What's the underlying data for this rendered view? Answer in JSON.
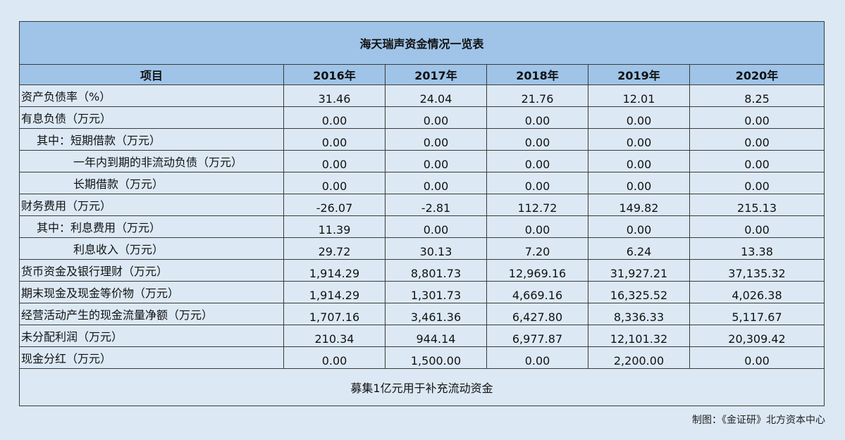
{
  "chart_data": {
    "type": "table",
    "title": "海天瑞声资金情况一览表",
    "header_label": "项目",
    "columns": [
      "2016年",
      "2017年",
      "2018年",
      "2019年",
      "2020年"
    ],
    "rows": [
      {
        "label": "资产负债率（%）",
        "indent": 0,
        "values": [
          "31.46",
          "24.04",
          "21.76",
          "12.01",
          "8.25"
        ]
      },
      {
        "label": "有息负债（万元）",
        "indent": 0,
        "values": [
          "0.00",
          "0.00",
          "0.00",
          "0.00",
          "0.00"
        ]
      },
      {
        "label": "其中：短期借款（万元）",
        "indent": 1,
        "values": [
          "0.00",
          "0.00",
          "0.00",
          "0.00",
          "0.00"
        ]
      },
      {
        "label": "一年内到期的非流动负债（万元）",
        "indent": 2,
        "values": [
          "0.00",
          "0.00",
          "0.00",
          "0.00",
          "0.00"
        ]
      },
      {
        "label": "长期借款（万元）",
        "indent": 2,
        "values": [
          "0.00",
          "0.00",
          "0.00",
          "0.00",
          "0.00"
        ]
      },
      {
        "label": "财务费用（万元）",
        "indent": 0,
        "values": [
          "-26.07",
          "-2.81",
          "112.72",
          "149.82",
          "215.13"
        ]
      },
      {
        "label": "其中：利息费用（万元）",
        "indent": 1,
        "values": [
          "11.39",
          "0.00",
          "0.00",
          "0.00",
          "0.00"
        ]
      },
      {
        "label": "利息收入（万元）",
        "indent": 2,
        "values": [
          "29.72",
          "30.13",
          "7.20",
          "6.24",
          "13.38"
        ]
      },
      {
        "label": "货币资金及银行理财（万元）",
        "indent": 0,
        "values": [
          "1,914.29",
          "8,801.73",
          "12,969.16",
          "31,927.21",
          "37,135.32"
        ]
      },
      {
        "label": "期末现金及现金等价物（万元）",
        "indent": 0,
        "values": [
          "1,914.29",
          "1,301.73",
          "4,669.16",
          "16,325.52",
          "4,026.38"
        ]
      },
      {
        "label": "经营活动产生的现金流量净额（万元）",
        "indent": 0,
        "values": [
          "1,707.16",
          "3,461.36",
          "6,427.80",
          "8,336.33",
          "5,117.67"
        ]
      },
      {
        "label": "未分配利润（万元）",
        "indent": 0,
        "values": [
          "210.34",
          "944.14",
          "6,977.87",
          "12,101.32",
          "20,309.42"
        ]
      },
      {
        "label": "现金分红（万元）",
        "indent": 0,
        "values": [
          "0.00",
          "1,500.00",
          "0.00",
          "2,200.00",
          "0.00"
        ]
      }
    ],
    "note": "募集1亿元用于补充流动资金",
    "source": "制图：《金证研》北方资本中心",
    "colors": {
      "header_bg": "#9fc4e8",
      "body_bg": "#dce9f5",
      "border": "#3a3a3a"
    }
  }
}
